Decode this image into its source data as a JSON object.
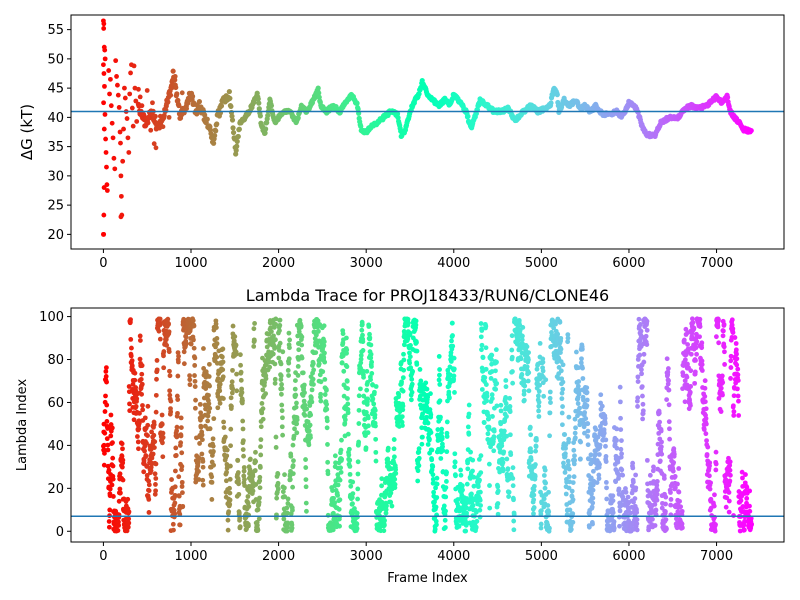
{
  "chart_data": [
    {
      "type": "scatter",
      "title": "",
      "xlabel": "",
      "ylabel": "ΔG (kT)",
      "xlim": [
        -370,
        7770
      ],
      "ylim": [
        17.5,
        57.5
      ],
      "xticks": [
        0,
        1000,
        2000,
        3000,
        4000,
        5000,
        6000,
        7000
      ],
      "yticks": [
        20,
        25,
        30,
        35,
        40,
        45,
        50,
        55
      ],
      "hline": 41.0,
      "hline_color": "#1f77b4",
      "colormap": "rainbow",
      "n_frames": 7400,
      "trace_keypoints": [
        [
          0,
          42
        ],
        [
          60,
          41
        ],
        [
          120,
          43
        ],
        [
          180,
          39
        ],
        [
          250,
          44
        ],
        [
          320,
          40
        ],
        [
          400,
          42
        ],
        [
          480,
          39
        ],
        [
          560,
          41
        ],
        [
          620,
          38
        ],
        [
          700,
          41
        ],
        [
          760,
          44
        ],
        [
          800,
          47.5
        ],
        [
          840,
          43
        ],
        [
          880,
          40
        ],
        [
          940,
          42
        ],
        [
          1000,
          44
        ],
        [
          1050,
          41
        ],
        [
          1100,
          42
        ],
        [
          1160,
          40
        ],
        [
          1220,
          38
        ],
        [
          1260,
          35.5
        ],
        [
          1300,
          40
        ],
        [
          1380,
          43
        ],
        [
          1440,
          44
        ],
        [
          1480,
          38
        ],
        [
          1510,
          34
        ],
        [
          1560,
          39
        ],
        [
          1620,
          40
        ],
        [
          1700,
          42
        ],
        [
          1760,
          44
        ],
        [
          1800,
          39
        ],
        [
          1840,
          37
        ],
        [
          1900,
          43
        ],
        [
          1960,
          39
        ],
        [
          2000,
          40
        ],
        [
          2060,
          41
        ],
        [
          2140,
          41
        ],
        [
          2200,
          39
        ],
        [
          2260,
          42
        ],
        [
          2320,
          41
        ],
        [
          2400,
          43
        ],
        [
          2450,
          45
        ],
        [
          2480,
          42
        ],
        [
          2550,
          41
        ],
        [
          2620,
          42
        ],
        [
          2700,
          41
        ],
        [
          2780,
          43
        ],
        [
          2840,
          44
        ],
        [
          2900,
          42
        ],
        [
          2940,
          38
        ],
        [
          3000,
          37.5
        ],
        [
          3060,
          38.5
        ],
        [
          3120,
          39
        ],
        [
          3200,
          40
        ],
        [
          3280,
          41
        ],
        [
          3360,
          40.5
        ],
        [
          3400,
          37
        ],
        [
          3440,
          37.5
        ],
        [
          3500,
          41
        ],
        [
          3560,
          43
        ],
        [
          3600,
          44
        ],
        [
          3640,
          46
        ],
        [
          3700,
          44
        ],
        [
          3760,
          43
        ],
        [
          3820,
          42
        ],
        [
          3900,
          43
        ],
        [
          3960,
          42
        ],
        [
          4000,
          44
        ],
        [
          4080,
          42.5
        ],
        [
          4140,
          41
        ],
        [
          4200,
          38
        ],
        [
          4260,
          41
        ],
        [
          4300,
          43
        ],
        [
          4380,
          42
        ],
        [
          4460,
          41
        ],
        [
          4540,
          41
        ],
        [
          4620,
          41.5
        ],
        [
          4700,
          39.5
        ],
        [
          4760,
          40.5
        ],
        [
          4800,
          41
        ],
        [
          4880,
          42
        ],
        [
          4960,
          41
        ],
        [
          5040,
          41.5
        ],
        [
          5100,
          42
        ],
        [
          5140,
          45
        ],
        [
          5180,
          44
        ],
        [
          5200,
          41
        ],
        [
          5260,
          43
        ],
        [
          5320,
          42
        ],
        [
          5400,
          43
        ],
        [
          5440,
          41.5
        ],
        [
          5500,
          42
        ],
        [
          5560,
          41
        ],
        [
          5620,
          42
        ],
        [
          5700,
          40.5
        ],
        [
          5780,
          40.5
        ],
        [
          5860,
          41
        ],
        [
          5920,
          40
        ],
        [
          6000,
          42.5
        ],
        [
          6060,
          42
        ],
        [
          6100,
          41
        ],
        [
          6160,
          38
        ],
        [
          6200,
          37
        ],
        [
          6300,
          37
        ],
        [
          6360,
          39
        ],
        [
          6400,
          39.5
        ],
        [
          6480,
          40
        ],
        [
          6560,
          40
        ],
        [
          6640,
          41.5
        ],
        [
          6720,
          42
        ],
        [
          6800,
          41.5
        ],
        [
          6880,
          42
        ],
        [
          6960,
          43
        ],
        [
          7000,
          43.5
        ],
        [
          7060,
          42.5
        ],
        [
          7120,
          43.5
        ],
        [
          7160,
          41
        ],
        [
          7200,
          40
        ],
        [
          7260,
          39
        ],
        [
          7300,
          38
        ],
        [
          7400,
          37.5
        ]
      ],
      "early_scatter": [
        [
          0,
          20
        ],
        [
          3,
          20
        ],
        [
          5,
          23.3
        ],
        [
          8,
          28
        ],
        [
          0,
          56.5
        ],
        [
          5,
          56
        ],
        [
          3,
          55.2
        ],
        [
          10,
          52
        ],
        [
          15,
          51.5
        ],
        [
          20,
          50
        ],
        [
          0,
          49
        ],
        [
          6,
          47.5
        ],
        [
          12,
          45.3
        ],
        [
          2,
          42.5
        ],
        [
          18,
          40.5
        ],
        [
          10,
          38
        ],
        [
          25,
          36.3
        ],
        [
          30,
          34
        ],
        [
          35,
          31.5
        ],
        [
          40,
          28.5
        ],
        [
          45,
          27.5
        ],
        [
          60,
          48
        ],
        [
          70,
          44
        ],
        [
          80,
          46.5
        ],
        [
          90,
          42
        ],
        [
          100,
          39
        ],
        [
          110,
          36.5
        ],
        [
          120,
          33
        ],
        [
          130,
          31.2
        ],
        [
          140,
          49.7
        ],
        [
          150,
          47
        ],
        [
          160,
          45.5
        ],
        [
          170,
          43.8
        ],
        [
          180,
          41.7
        ],
        [
          190,
          37.5
        ],
        [
          195,
          35.6
        ],
        [
          200,
          30
        ],
        [
          205,
          26.5
        ],
        [
          210,
          23.3
        ],
        [
          200,
          23
        ],
        [
          220,
          32.5
        ],
        [
          230,
          38
        ],
        [
          240,
          45
        ],
        [
          250,
          43.3
        ],
        [
          260,
          41
        ],
        [
          270,
          39.8
        ],
        [
          280,
          36.5
        ],
        [
          290,
          34
        ],
        [
          300,
          44
        ],
        [
          310,
          47.6
        ],
        [
          320,
          49
        ],
        [
          330,
          41.6
        ],
        [
          340,
          38.5
        ],
        [
          350,
          48.8
        ],
        [
          360,
          45
        ],
        [
          370,
          42.8
        ],
        [
          380,
          39.3
        ],
        [
          400,
          44.8
        ],
        [
          420,
          43.5
        ],
        [
          440,
          42
        ],
        [
          460,
          40.5
        ],
        [
          480,
          38.5
        ],
        [
          500,
          44.6
        ],
        [
          520,
          40.1
        ],
        [
          540,
          37.8
        ],
        [
          560,
          42.5
        ],
        [
          580,
          35.5
        ],
        [
          600,
          34.8
        ],
        [
          620,
          39
        ],
        [
          650,
          40.2
        ],
        [
          680,
          38.4
        ],
        [
          720,
          42.3
        ],
        [
          750,
          40
        ],
        [
          780,
          45
        ],
        [
          820,
          47
        ],
        [
          860,
          42
        ],
        [
          900,
          44.2
        ],
        [
          950,
          41.5
        ]
      ]
    },
    {
      "type": "scatter",
      "title": "Lambda Trace for PROJ18433/RUN6/CLONE46",
      "xlabel": "Frame Index",
      "ylabel": "Lambda Index",
      "xlim": [
        -370,
        7770
      ],
      "ylim": [
        -5,
        104
      ],
      "xticks": [
        0,
        1000,
        2000,
        3000,
        4000,
        5000,
        6000,
        7000
      ],
      "yticks": [
        0,
        20,
        40,
        60,
        80,
        100
      ],
      "hline": 7,
      "hline_color": "#1f77b4",
      "colormap": "rainbow",
      "n_frames": 7400,
      "lambda_min": 0,
      "lambda_max": 99
    }
  ]
}
